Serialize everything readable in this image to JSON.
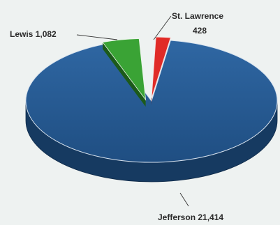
{
  "chart_data": {
    "type": "pie",
    "style": "3d-exploded",
    "title": "",
    "slices": [
      {
        "label": "Lewis",
        "value": 1082,
        "display": "Lewis  1,082",
        "color": "#3aa335",
        "dark_color": "#1c5a1a"
      },
      {
        "label": "St. Lawrence",
        "value": 428,
        "display_lines": [
          "St. Lawrence",
          "428"
        ],
        "color": "#e02b27",
        "dark_color": "#6e1211"
      },
      {
        "label": "Jefferson",
        "value": 21414,
        "display": "Jefferson 21,414",
        "color": "#24578f",
        "dark_color": "#163a61"
      }
    ]
  }
}
